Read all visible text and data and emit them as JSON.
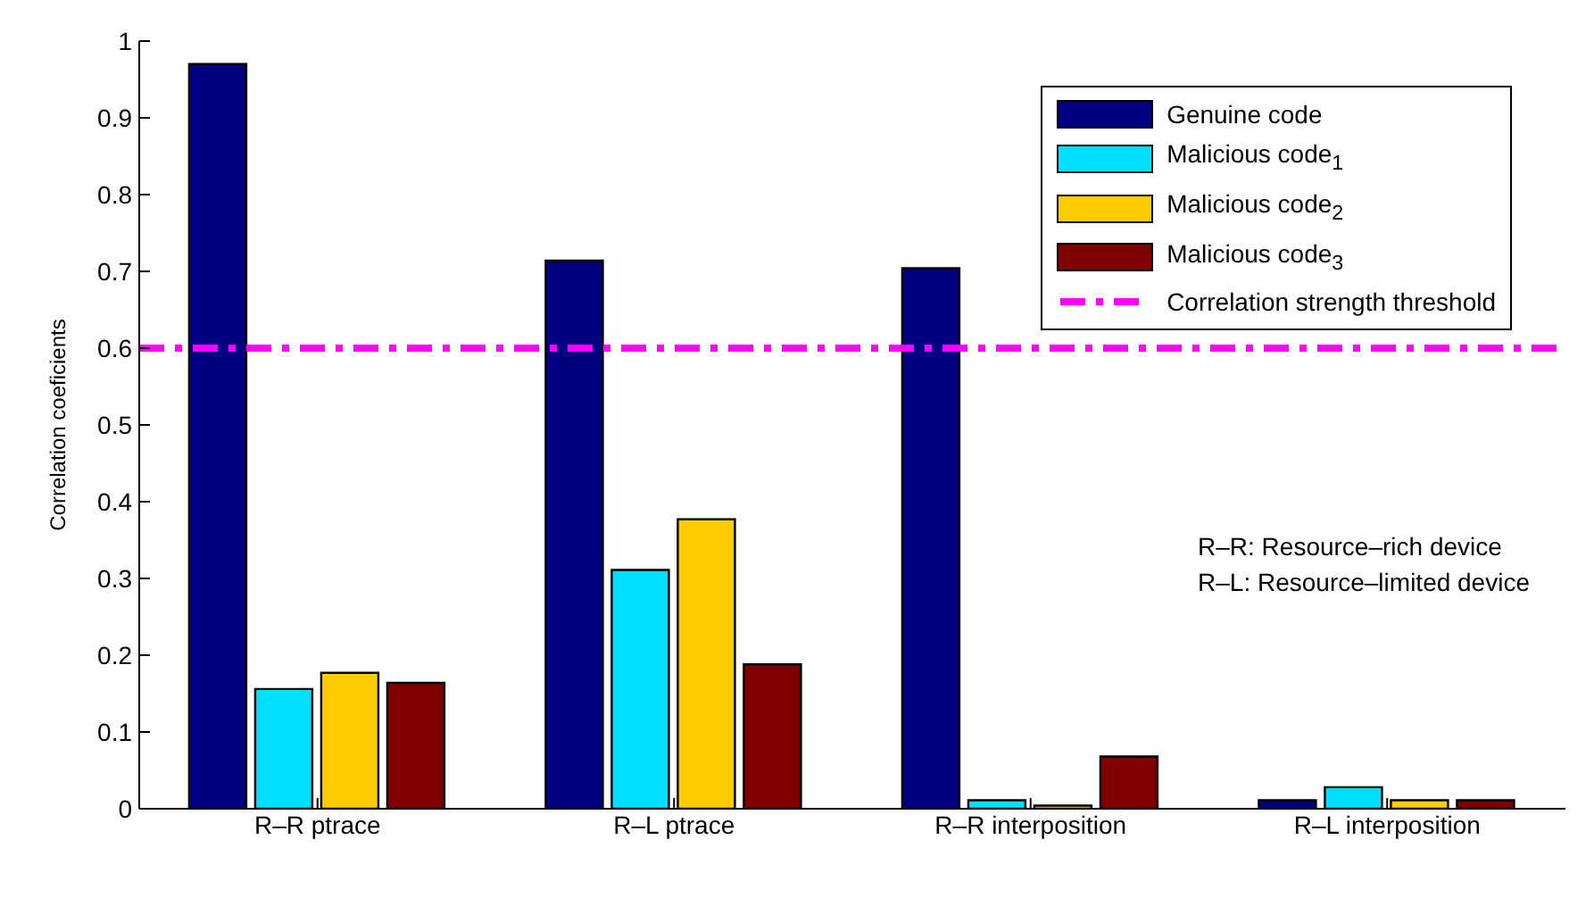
{
  "chart_data": {
    "type": "bar",
    "ylabel": "Correlation coeficients",
    "categories": [
      "R–R ptrace",
      "R–L ptrace",
      "R–R interposition",
      "R–L interposition"
    ],
    "series": [
      {
        "name": "Genuine code",
        "color": "#000080",
        "values": [
          0.97,
          0.714,
          0.704,
          0.011
        ]
      },
      {
        "name": "Malicious code$_{1}$",
        "color": "#00dfff",
        "values": [
          0.156,
          0.311,
          0.011,
          0.028
        ]
      },
      {
        "name": "Malicious code$_{2}$",
        "color": "#ffcc00",
        "values": [
          0.177,
          0.377,
          0.004,
          0.011
        ]
      },
      {
        "name": "Malicious code$_{3}$",
        "color": "#800000",
        "values": [
          0.164,
          0.188,
          0.068,
          0.011
        ]
      }
    ],
    "ylim": [
      0,
      1
    ],
    "yticks": [
      0,
      0.1,
      0.2,
      0.3,
      0.4,
      0.5,
      0.6,
      0.7,
      0.8,
      0.9,
      1
    ],
    "ref_lines": [
      {
        "axis": "y",
        "value": 0.6,
        "label": "Correlation strength threshold",
        "color": "#ff00ff",
        "line_style": "dashed"
      }
    ],
    "annotations": [
      "R–R: Resource–rich device",
      "R–L: Resource–limited device"
    ],
    "legend": "top right",
    "grid": false
  }
}
